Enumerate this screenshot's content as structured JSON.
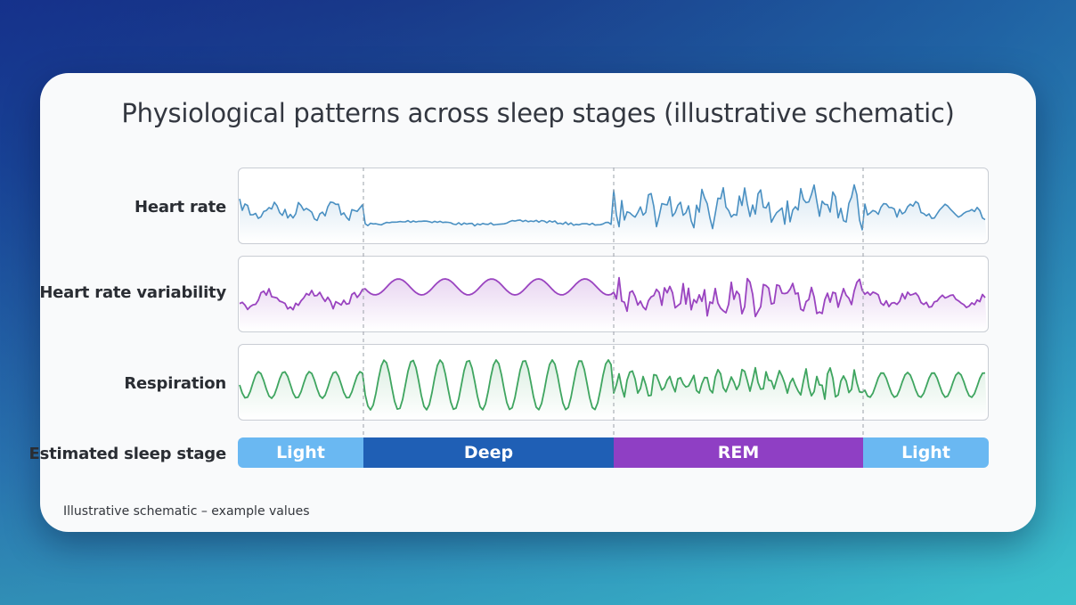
{
  "title": "Physiological patterns across sleep stages (illustrative schematic)",
  "rows": [
    {
      "label": "Heart rate",
      "color": "#4a90c2"
    },
    {
      "label": "Heart rate variability",
      "color": "#9a44c0"
    },
    {
      "label": "Respiration",
      "color": "#3fa560"
    }
  ],
  "stage_row_label": "Estimated sleep stage",
  "stages": [
    {
      "label": "Light",
      "color": "#6ab8f2"
    },
    {
      "label": "Deep",
      "color": "#1f5fb5"
    },
    {
      "label": "REM",
      "color": "#8f3fc4"
    },
    {
      "label": "Light",
      "color": "#6ab8f2"
    }
  ],
  "footnote": "Illustrative schematic – example values",
  "colors": {
    "background_top": "#0a1a6b",
    "background_bottom": "#3bbecb",
    "card": "#f9fafb"
  }
}
